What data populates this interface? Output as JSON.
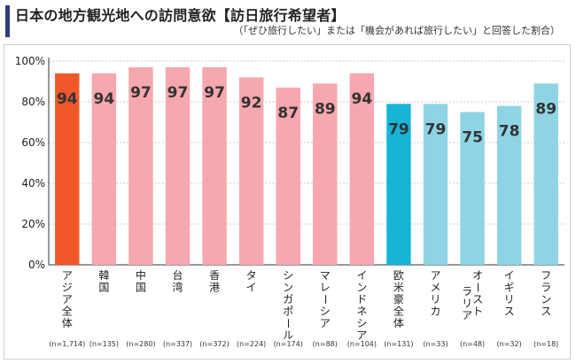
{
  "title": "日本の地方観光地への訪問意欲【訪日旅行希望者】",
  "subtitle": "（「ぜひ旅行したい」または「機会があれば旅行したい」と回答した割合）",
  "colors": {
    "highlight_asia": "#f0582a",
    "asia": "#f7a7ae",
    "highlight_west": "#17b4d6",
    "west": "#8fd4e4",
    "title_bar": "#2e3e7e"
  },
  "chart_data": {
    "type": "bar",
    "title": "日本の地方観光地への訪問意欲【訪日旅行希望者】",
    "ylim": [
      0,
      100
    ],
    "yticks": [
      "0%",
      "20%",
      "40%",
      "60%",
      "80%",
      "100%"
    ],
    "grid": true,
    "categories": [
      "アジア全体",
      "韓国",
      "中国",
      "台湾",
      "香港",
      "タイ",
      "シンガポール",
      "マレーシア",
      "インドネシア",
      "欧米豪全体",
      "アメリカ",
      "オースト ラリア",
      "イギリス",
      "フランス"
    ],
    "values": [
      94,
      94,
      97,
      97,
      97,
      92,
      87,
      89,
      94,
      79,
      79,
      75,
      78,
      89
    ],
    "sample_sizes": [
      "(n=1,714)",
      "(n=135)",
      "(n=280)",
      "(n=337)",
      "(n=372)",
      "(n=224)",
      "(n=174)",
      "(n=88)",
      "(n=104)",
      "(n=131)",
      "(n=33)",
      "(n=48)",
      "(n=32)",
      "(n=18)"
    ],
    "groups": [
      "highlight_asia",
      "asia",
      "asia",
      "asia",
      "asia",
      "asia",
      "asia",
      "asia",
      "asia",
      "highlight_west",
      "west",
      "west",
      "west",
      "west"
    ]
  }
}
